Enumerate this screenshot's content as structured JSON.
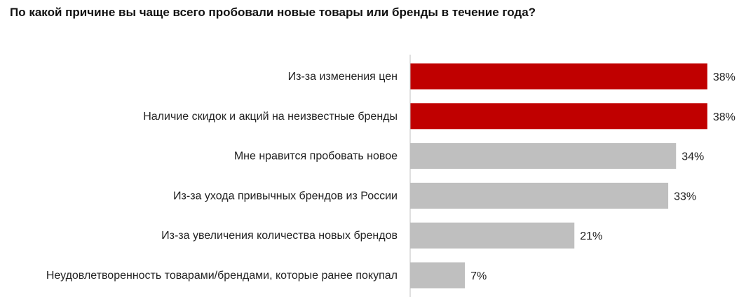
{
  "chart_data": {
    "type": "bar",
    "orientation": "horizontal",
    "title": "По какой причине вы чаще всего пробовали новые товары или бренды в течение года?",
    "categories": [
      "Из-за изменения цен",
      "Наличие скидок и акций на неизвестные бренды",
      "Мне нравится пробовать новое",
      "Из-за ухода привычных брендов из России",
      "Из-за увеличения количества новых брендов",
      "Неудовлетворенность товарами/брендами, которые ранее покупал"
    ],
    "values": [
      38,
      38,
      34,
      33,
      21,
      7
    ],
    "value_labels": [
      "38%",
      "38%",
      "34%",
      "33%",
      "21%",
      "7%"
    ],
    "colors": [
      "#c00000",
      "#c00000",
      "#bfbfbf",
      "#bfbfbf",
      "#bfbfbf",
      "#bfbfbf"
    ],
    "axis_color": "#bfbfbf",
    "xlim": [
      0,
      39
    ],
    "grid": false,
    "legend": "none"
  }
}
